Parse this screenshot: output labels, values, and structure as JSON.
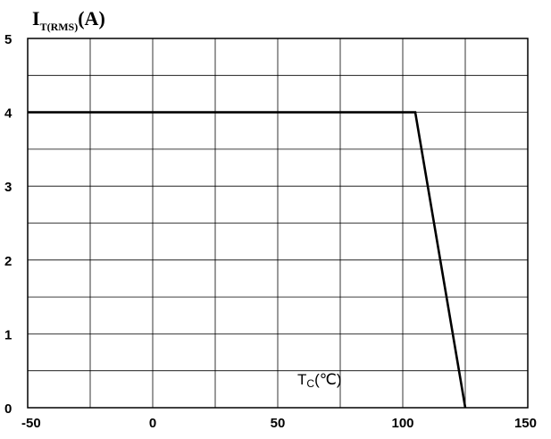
{
  "chart_data": {
    "type": "line",
    "ylabel_main": "I",
    "ylabel_sub": "T(RMS)",
    "ylabel_unit": "(A)",
    "xlabel_main": "T",
    "xlabel_sub": "C",
    "xlabel_unit": "(℃)",
    "xlim": [
      -50,
      150
    ],
    "ylim": [
      0,
      5
    ],
    "x_ticks": [
      -50,
      0,
      50,
      100,
      150
    ],
    "y_ticks": [
      0,
      1,
      2,
      3,
      4,
      5
    ],
    "x_grid": [
      -50,
      -25,
      0,
      25,
      50,
      75,
      100,
      125,
      150
    ],
    "y_grid": [
      0,
      0.5,
      1,
      1.5,
      2,
      2.5,
      3,
      3.5,
      4,
      4.5,
      5
    ],
    "grid": true,
    "series": [
      {
        "x": [
          -50,
          105,
          125
        ],
        "y": [
          4,
          4,
          0
        ]
      }
    ]
  }
}
